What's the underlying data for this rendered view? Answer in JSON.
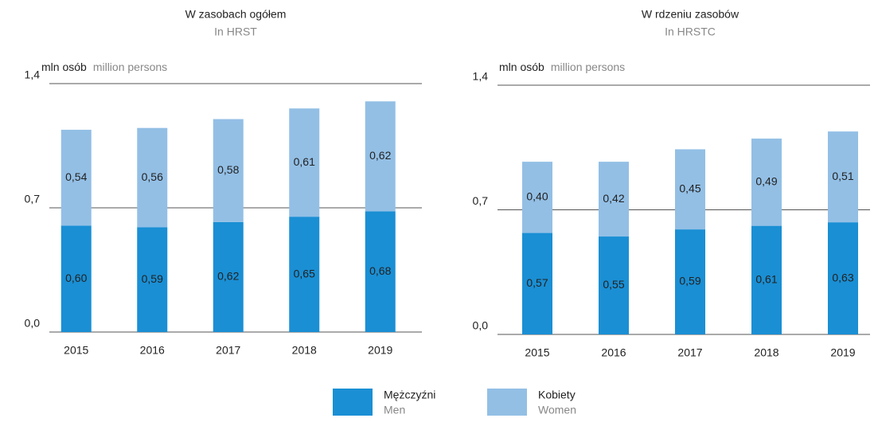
{
  "chart_data": [
    {
      "type": "stacked_bar",
      "title": "W zasobach ogółem",
      "subtitle": "In HRST",
      "y_label": "mln osób",
      "y_label_en": "million persons",
      "categories": [
        "2015",
        "2016",
        "2017",
        "2018",
        "2019"
      ],
      "series": [
        {
          "name": "Mężczyźni",
          "name_en": "Men",
          "color": "#1a8fd4",
          "values": [
            0.6,
            0.59,
            0.62,
            0.65,
            0.68
          ],
          "value_labels": [
            "0,60",
            "0,59",
            "0,62",
            "0,65",
            "0,68"
          ]
        },
        {
          "name": "Kobiety",
          "name_en": "Women",
          "color": "#93bfe5",
          "values": [
            0.54,
            0.56,
            0.58,
            0.61,
            0.62
          ],
          "value_labels": [
            "0,54",
            "0,56",
            "0,58",
            "0,61",
            "0,62"
          ]
        }
      ],
      "ylim": [
        0,
        1.4
      ],
      "yticks": [
        {
          "value": 0,
          "label": "0,0"
        },
        {
          "value": 0.7,
          "label": "0,7"
        },
        {
          "value": 1.4,
          "label": "1,4"
        }
      ],
      "grid": true
    },
    {
      "type": "stacked_bar",
      "title": "W rdzeniu zasobów",
      "subtitle": "In HRSTC",
      "y_label": "mln osób",
      "y_label_en": "million persons",
      "categories": [
        "2015",
        "2016",
        "2017",
        "2018",
        "2019"
      ],
      "series": [
        {
          "name": "Mężczyźni",
          "name_en": "Men",
          "color": "#1a8fd4",
          "values": [
            0.57,
            0.55,
            0.59,
            0.61,
            0.63
          ],
          "value_labels": [
            "0,57",
            "0,55",
            "0,59",
            "0,61",
            "0,63"
          ]
        },
        {
          "name": "Kobiety",
          "name_en": "Women",
          "color": "#93bfe5",
          "values": [
            0.4,
            0.42,
            0.45,
            0.49,
            0.51
          ],
          "value_labels": [
            "0,40",
            "0,42",
            "0,45",
            "0,49",
            "0,51"
          ]
        }
      ],
      "ylim": [
        0,
        1.4
      ],
      "yticks": [
        {
          "value": 0,
          "label": "0,0"
        },
        {
          "value": 0.7,
          "label": "0,7"
        },
        {
          "value": 1.4,
          "label": "1,4"
        }
      ],
      "grid": true
    }
  ]
}
